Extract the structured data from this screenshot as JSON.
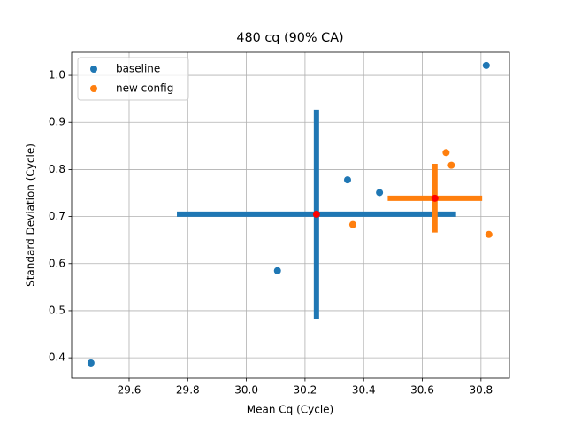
{
  "chart_data": {
    "type": "scatter",
    "title": "480 cq (90% CA)",
    "x_label": "Mean Cq (Cycle)",
    "y_label": "Standard Deviation (Cycle)",
    "xlim": [
      29.404,
      30.897
    ],
    "ylim": [
      0.357,
      1.049
    ],
    "xticks": [
      29.6,
      29.8,
      {
        "value": 30,
        "label": "30.0"
      },
      30.2,
      30.4,
      30.6,
      30.8
    ],
    "yticks": [
      0.4,
      0.5,
      0.6,
      0.7,
      0.8,
      0.9,
      {
        "value": 1,
        "label": "1.0"
      }
    ],
    "grid": true,
    "legend": "upper left",
    "mean_color": "#ff0000",
    "series": [
      {
        "name": "baseline",
        "color": "#1f77b4",
        "x": [
          29.47,
          30.106,
          30.345,
          30.454,
          30.818
        ],
        "y": [
          0.389,
          0.585,
          0.778,
          0.751,
          1.021
        ],
        "mean_x": 30.239,
        "mean_y": 0.705,
        "xerr": 0.476,
        "yerr": 0.222
      },
      {
        "name": "new config",
        "color": "#ff7f0e",
        "x": [
          30.681,
          30.699,
          30.363,
          30.827,
          30.643
        ],
        "y": [
          0.836,
          0.809,
          0.683,
          0.662,
          0.705
        ],
        "mean_x": 30.643,
        "mean_y": 0.739,
        "xerr": 0.161,
        "yerr": 0.073
      }
    ]
  }
}
